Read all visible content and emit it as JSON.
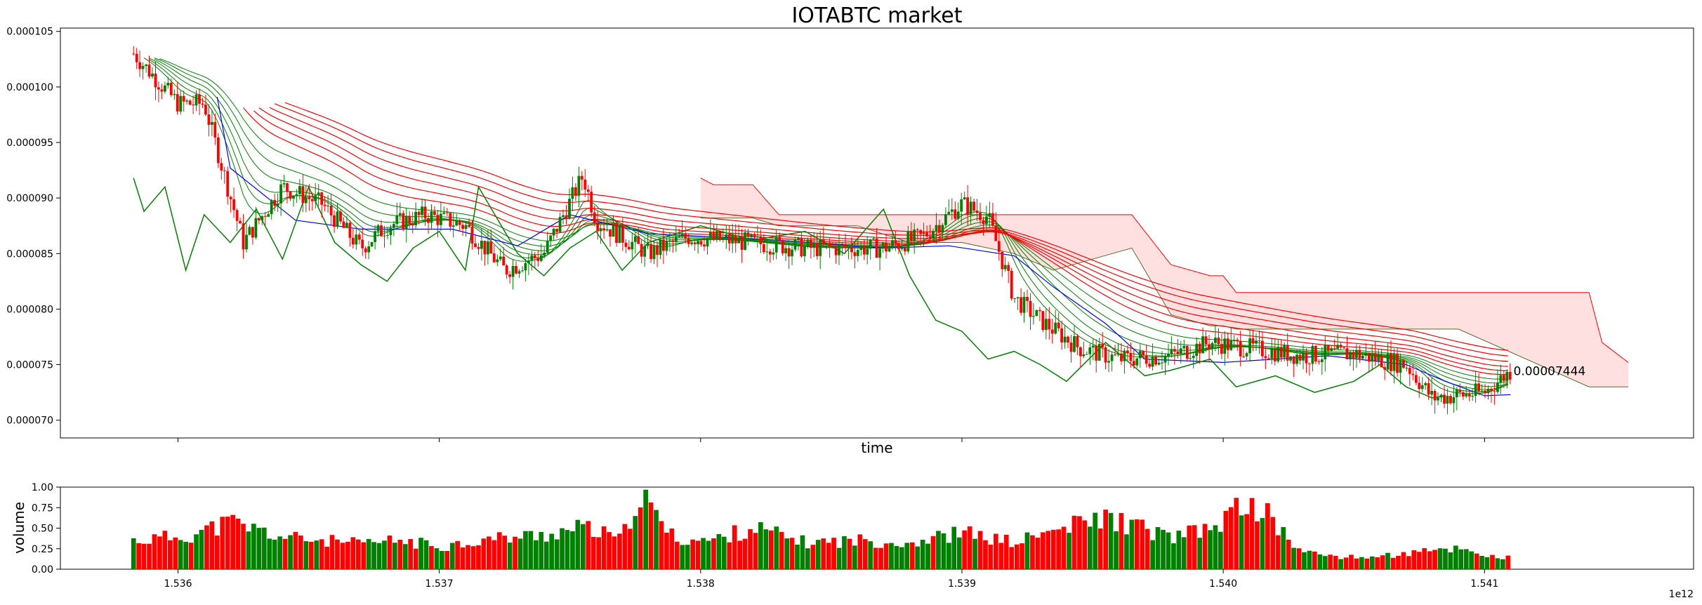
{
  "colors": {
    "up": "#008000",
    "down": "#ff0000",
    "cloud_fill": "#ffe0e0",
    "cloud_edge_a": "#ff0000",
    "cloud_edge_b": "#556b2f",
    "kijun": "#0000ff",
    "chikou": "#008000",
    "ema_fast": "#008000",
    "ema_slow": "#ff0000"
  },
  "icons": [],
  "chart_data": [
    {
      "type": "line",
      "title": "IOTABTC market",
      "xlabel": "time",
      "ylabel": "",
      "xlim": [
        1535550000000,
        1541800000000
      ],
      "ylim": [
        6.84e-05,
        0.0001053
      ],
      "x_exponent_label": "1e12",
      "x_ticks": [
        1536000000000,
        1537000000000,
        1538000000000,
        1539000000000,
        1540000000000,
        1541000000000
      ],
      "x_tick_labels": [
        "1.536",
        "1.537",
        "1.538",
        "1.539",
        "1.540",
        "1.541"
      ],
      "y_ticks": [
        7e-05,
        7.5e-05,
        8e-05,
        8.5e-05,
        9e-05,
        9.5e-05,
        0.0001,
        0.000105
      ],
      "y_tick_labels": [
        "0.000070",
        "0.000075",
        "0.000080",
        "0.000085",
        "0.000090",
        "0.000095",
        "0.000100",
        "0.000105"
      ],
      "annotation": {
        "text": "0.00007444",
        "x": 1541100000000,
        "y": 7.444e-05
      },
      "series": [
        {
          "role": "close-price",
          "x": [
            1535830000000,
            1536000000000,
            1536100000000,
            1536250000000,
            1536400000000,
            1536550000000,
            1536700000000,
            1536800000000,
            1536950000000,
            1537100000000,
            1537250000000,
            1537400000000,
            1537550000000,
            1537600000000,
            1537800000000,
            1537950000000,
            1538100000000,
            1538400000000,
            1538700000000,
            1538850000000,
            1539000000000,
            1539100000000,
            1539200000000,
            1539300000000,
            1539450000000,
            1539600000000,
            1539800000000,
            1539950000000,
            1540100000000,
            1540300000000,
            1540500000000,
            1540700000000,
            1540800000000,
            1541000000000,
            1541100000000
          ],
          "y": [
            0.000103,
            9.85e-05,
            9.85e-05,
            8.6e-05,
            9.1e-05,
            8.95e-05,
            8.55e-05,
            8.75e-05,
            8.85e-05,
            8.75e-05,
            8.35e-05,
            8.5e-05,
            9.2e-05,
            8.8e-05,
            8.5e-05,
            8.65e-05,
            8.62e-05,
            8.55e-05,
            8.55e-05,
            8.65e-05,
            8.95e-05,
            8.83e-05,
            8.1e-05,
            7.9e-05,
            7.65e-05,
            7.55e-05,
            7.58e-05,
            7.7e-05,
            7.65e-05,
            7.58e-05,
            7.6e-05,
            7.5e-05,
            7.2e-05,
            7.25e-05,
            7.444e-05
          ]
        },
        {
          "role": "kijun",
          "x": [
            1536150000000,
            1536200000000,
            1536450000000,
            1536700000000,
            1537050000000,
            1537300000000,
            1537500000000,
            1537800000000,
            1538300000000,
            1538700000000,
            1538950000000,
            1539200000000,
            1539350000000,
            1539550000000,
            1539700000000,
            1540000000000,
            1540400000000,
            1540700000000,
            1540850000000,
            1541000000000,
            1541100000000
          ],
          "y": [
            9.91e-05,
            9.27e-05,
            8.8e-05,
            8.72e-05,
            8.72e-05,
            8.57e-05,
            8.85e-05,
            8.68e-05,
            8.62e-05,
            8.55e-05,
            8.57e-05,
            8.48e-05,
            8.2e-05,
            7.87e-05,
            7.55e-05,
            7.52e-05,
            7.58e-05,
            7.5e-05,
            7.35e-05,
            7.22e-05,
            7.23e-05
          ]
        },
        {
          "role": "chikou",
          "x": [
            1535830000000,
            1535870000000,
            1535950000000,
            1536030000000,
            1536100000000,
            1536200000000,
            1536300000000,
            1536400000000,
            1536500000000,
            1536600000000,
            1536700000000,
            1536800000000,
            1536900000000,
            1537000000000,
            1537100000000,
            1537150000000,
            1537300000000,
            1537400000000,
            1537500000000,
            1537600000000,
            1537700000000,
            1537800000000,
            1538000000000,
            1538200000000,
            1538400000000,
            1538550000000,
            1538700000000,
            1538800000000,
            1538900000000,
            1539000000000,
            1539100000000,
            1539200000000,
            1539300000000,
            1539400000000,
            1539550000000,
            1539700000000,
            1539800000000,
            1539950000000,
            1540050000000,
            1540200000000,
            1540350000000,
            1540500000000,
            1540600000000,
            1540700000000,
            1540800000000,
            1540850000000
          ],
          "y": [
            9.18e-05,
            8.88e-05,
            9.1e-05,
            8.35e-05,
            8.85e-05,
            8.6e-05,
            8.9e-05,
            8.45e-05,
            9.1e-05,
            8.6e-05,
            8.4e-05,
            8.25e-05,
            8.55e-05,
            8.7e-05,
            8.35e-05,
            9.1e-05,
            8.5e-05,
            8.3e-05,
            8.55e-05,
            8.7e-05,
            8.35e-05,
            8.6e-05,
            8.75e-05,
            8.62e-05,
            8.7e-05,
            8.5e-05,
            8.9e-05,
            8.3e-05,
            7.9e-05,
            7.8e-05,
            7.55e-05,
            7.62e-05,
            7.5e-05,
            7.35e-05,
            7.7e-05,
            7.4e-05,
            7.45e-05,
            7.55e-05,
            7.3e-05,
            7.4e-05,
            7.25e-05,
            7.35e-05,
            7.5e-05,
            7.3e-05,
            7.2e-05,
            7.22e-05
          ]
        },
        {
          "role": "cloud-span-a",
          "x": [
            1538000000000,
            1538050000000,
            1538200000000,
            1538300000000,
            1538600000000,
            1538800000000,
            1539000000000,
            1539200000000,
            1539350000000,
            1539500000000,
            1539650000000,
            1539800000000,
            1539950000000,
            1540000000000,
            1540050000000,
            1540300000000,
            1540600000000,
            1540900000000,
            1541400000000,
            1541450000000,
            1541550000000
          ],
          "y": [
            9.18e-05,
            9.12e-05,
            9.12e-05,
            8.85e-05,
            8.85e-05,
            8.85e-05,
            8.85e-05,
            8.85e-05,
            8.85e-05,
            8.85e-05,
            8.85e-05,
            8.4e-05,
            8.3e-05,
            8.3e-05,
            8.15e-05,
            8.15e-05,
            8.15e-05,
            8.15e-05,
            8.15e-05,
            7.7e-05,
            7.52e-05
          ]
        },
        {
          "role": "cloud-span-b",
          "x": [
            1538000000000,
            1538050000000,
            1538200000000,
            1538300000000,
            1538600000000,
            1538800000000,
            1539000000000,
            1539200000000,
            1539350000000,
            1539500000000,
            1539650000000,
            1539800000000,
            1539950000000,
            1540000000000,
            1540050000000,
            1540300000000,
            1540600000000,
            1540900000000,
            1541400000000,
            1541450000000,
            1541550000000
          ],
          "y": [
            8.82e-05,
            8.82e-05,
            8.82e-05,
            8.75e-05,
            8.75e-05,
            8.6e-05,
            8.6e-05,
            8.5e-05,
            8.35e-05,
            8.45e-05,
            8.55e-05,
            7.95e-05,
            7.85e-05,
            7.85e-05,
            7.82e-05,
            7.82e-05,
            7.82e-05,
            7.82e-05,
            7.3e-05,
            7.3e-05,
            7.3e-05
          ]
        }
      ]
    },
    {
      "type": "bar",
      "title": "",
      "xlabel": "",
      "ylabel": "volume",
      "ylim": [
        0,
        1
      ],
      "y_ticks": [
        0,
        0.25,
        0.5,
        0.75,
        1.0
      ],
      "y_tick_labels": [
        "0.00",
        "0.25",
        "0.50",
        "0.75",
        "1.00"
      ],
      "series": [
        {
          "role": "volume",
          "x": [
            1535850000000,
            1536050000000,
            1536200000000,
            1536400000000,
            1536550000000,
            1536700000000,
            1536850000000,
            1537000000000,
            1537200000000,
            1537400000000,
            1537550000000,
            1537700000000,
            1537760000000,
            1537900000000,
            1538050000000,
            1538200000000,
            1538400000000,
            1538600000000,
            1538800000000,
            1539000000000,
            1539200000000,
            1539400000000,
            1539550000000,
            1539650000000,
            1539800000000,
            1539950000000,
            1540080000000,
            1540150000000,
            1540300000000,
            1540500000000,
            1540700000000,
            1540900000000,
            1541050000000
          ],
          "y": [
            0.38,
            0.45,
            0.62,
            0.42,
            0.38,
            0.33,
            0.38,
            0.3,
            0.4,
            0.45,
            0.55,
            0.38,
            1.0,
            0.4,
            0.38,
            0.55,
            0.35,
            0.38,
            0.35,
            0.48,
            0.35,
            0.55,
            0.68,
            0.58,
            0.42,
            0.52,
            0.85,
            0.78,
            0.22,
            0.15,
            0.2,
            0.28,
            0.15
          ]
        }
      ]
    }
  ]
}
